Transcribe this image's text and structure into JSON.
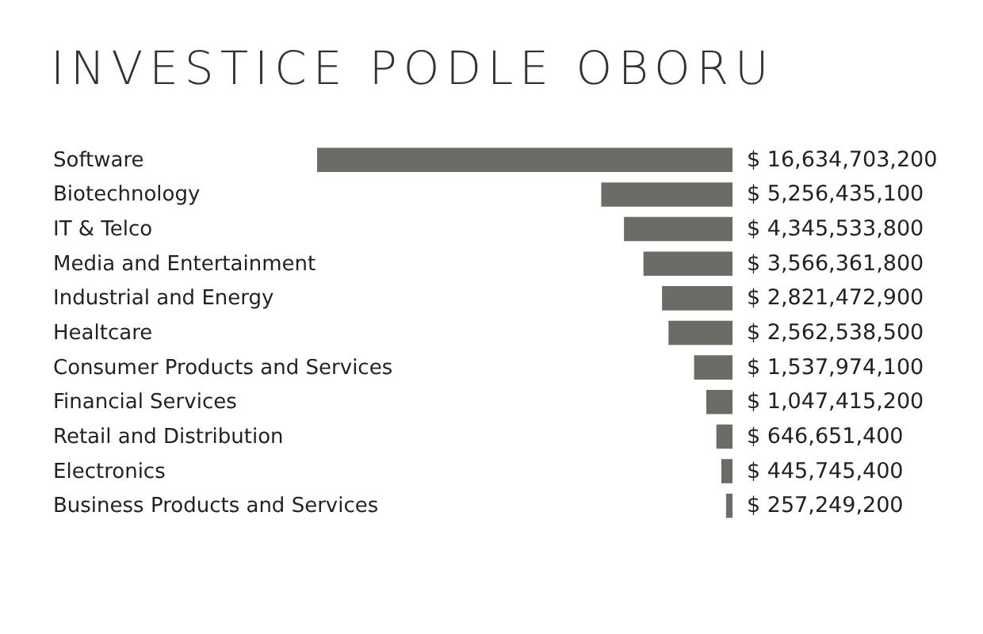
{
  "chart_data": {
    "type": "bar",
    "orientation": "horizontal",
    "title": "INVESTICE PODLE OBORU",
    "categories": [
      "Software",
      "Biotechnology",
      "IT & Telco",
      "Media and Entertainment",
      "Industrial and Energy",
      "Healtcare",
      "Consumer Products and Services",
      "Financial Services",
      "Retail and Distribution",
      "Electronics",
      "Business Products and Services"
    ],
    "values": [
      16634703200,
      5256435100,
      4345533800,
      3566361800,
      2821472900,
      2562538500,
      1537974100,
      1047415200,
      646651400,
      445745400,
      257249200
    ],
    "value_labels": [
      "$ 16,634,703,200",
      "$ 5,256,435,100",
      "$ 4,345,533,800",
      "$ 3,566,361,800",
      "$ 2,821,472,900",
      "$ 2,562,538,500",
      "$ 1,537,974,100",
      "$ 1,047,415,200",
      "$ 646,651,400",
      "$ 445,745,400",
      "$ 257,249,200"
    ],
    "color": "#6b6c66"
  }
}
